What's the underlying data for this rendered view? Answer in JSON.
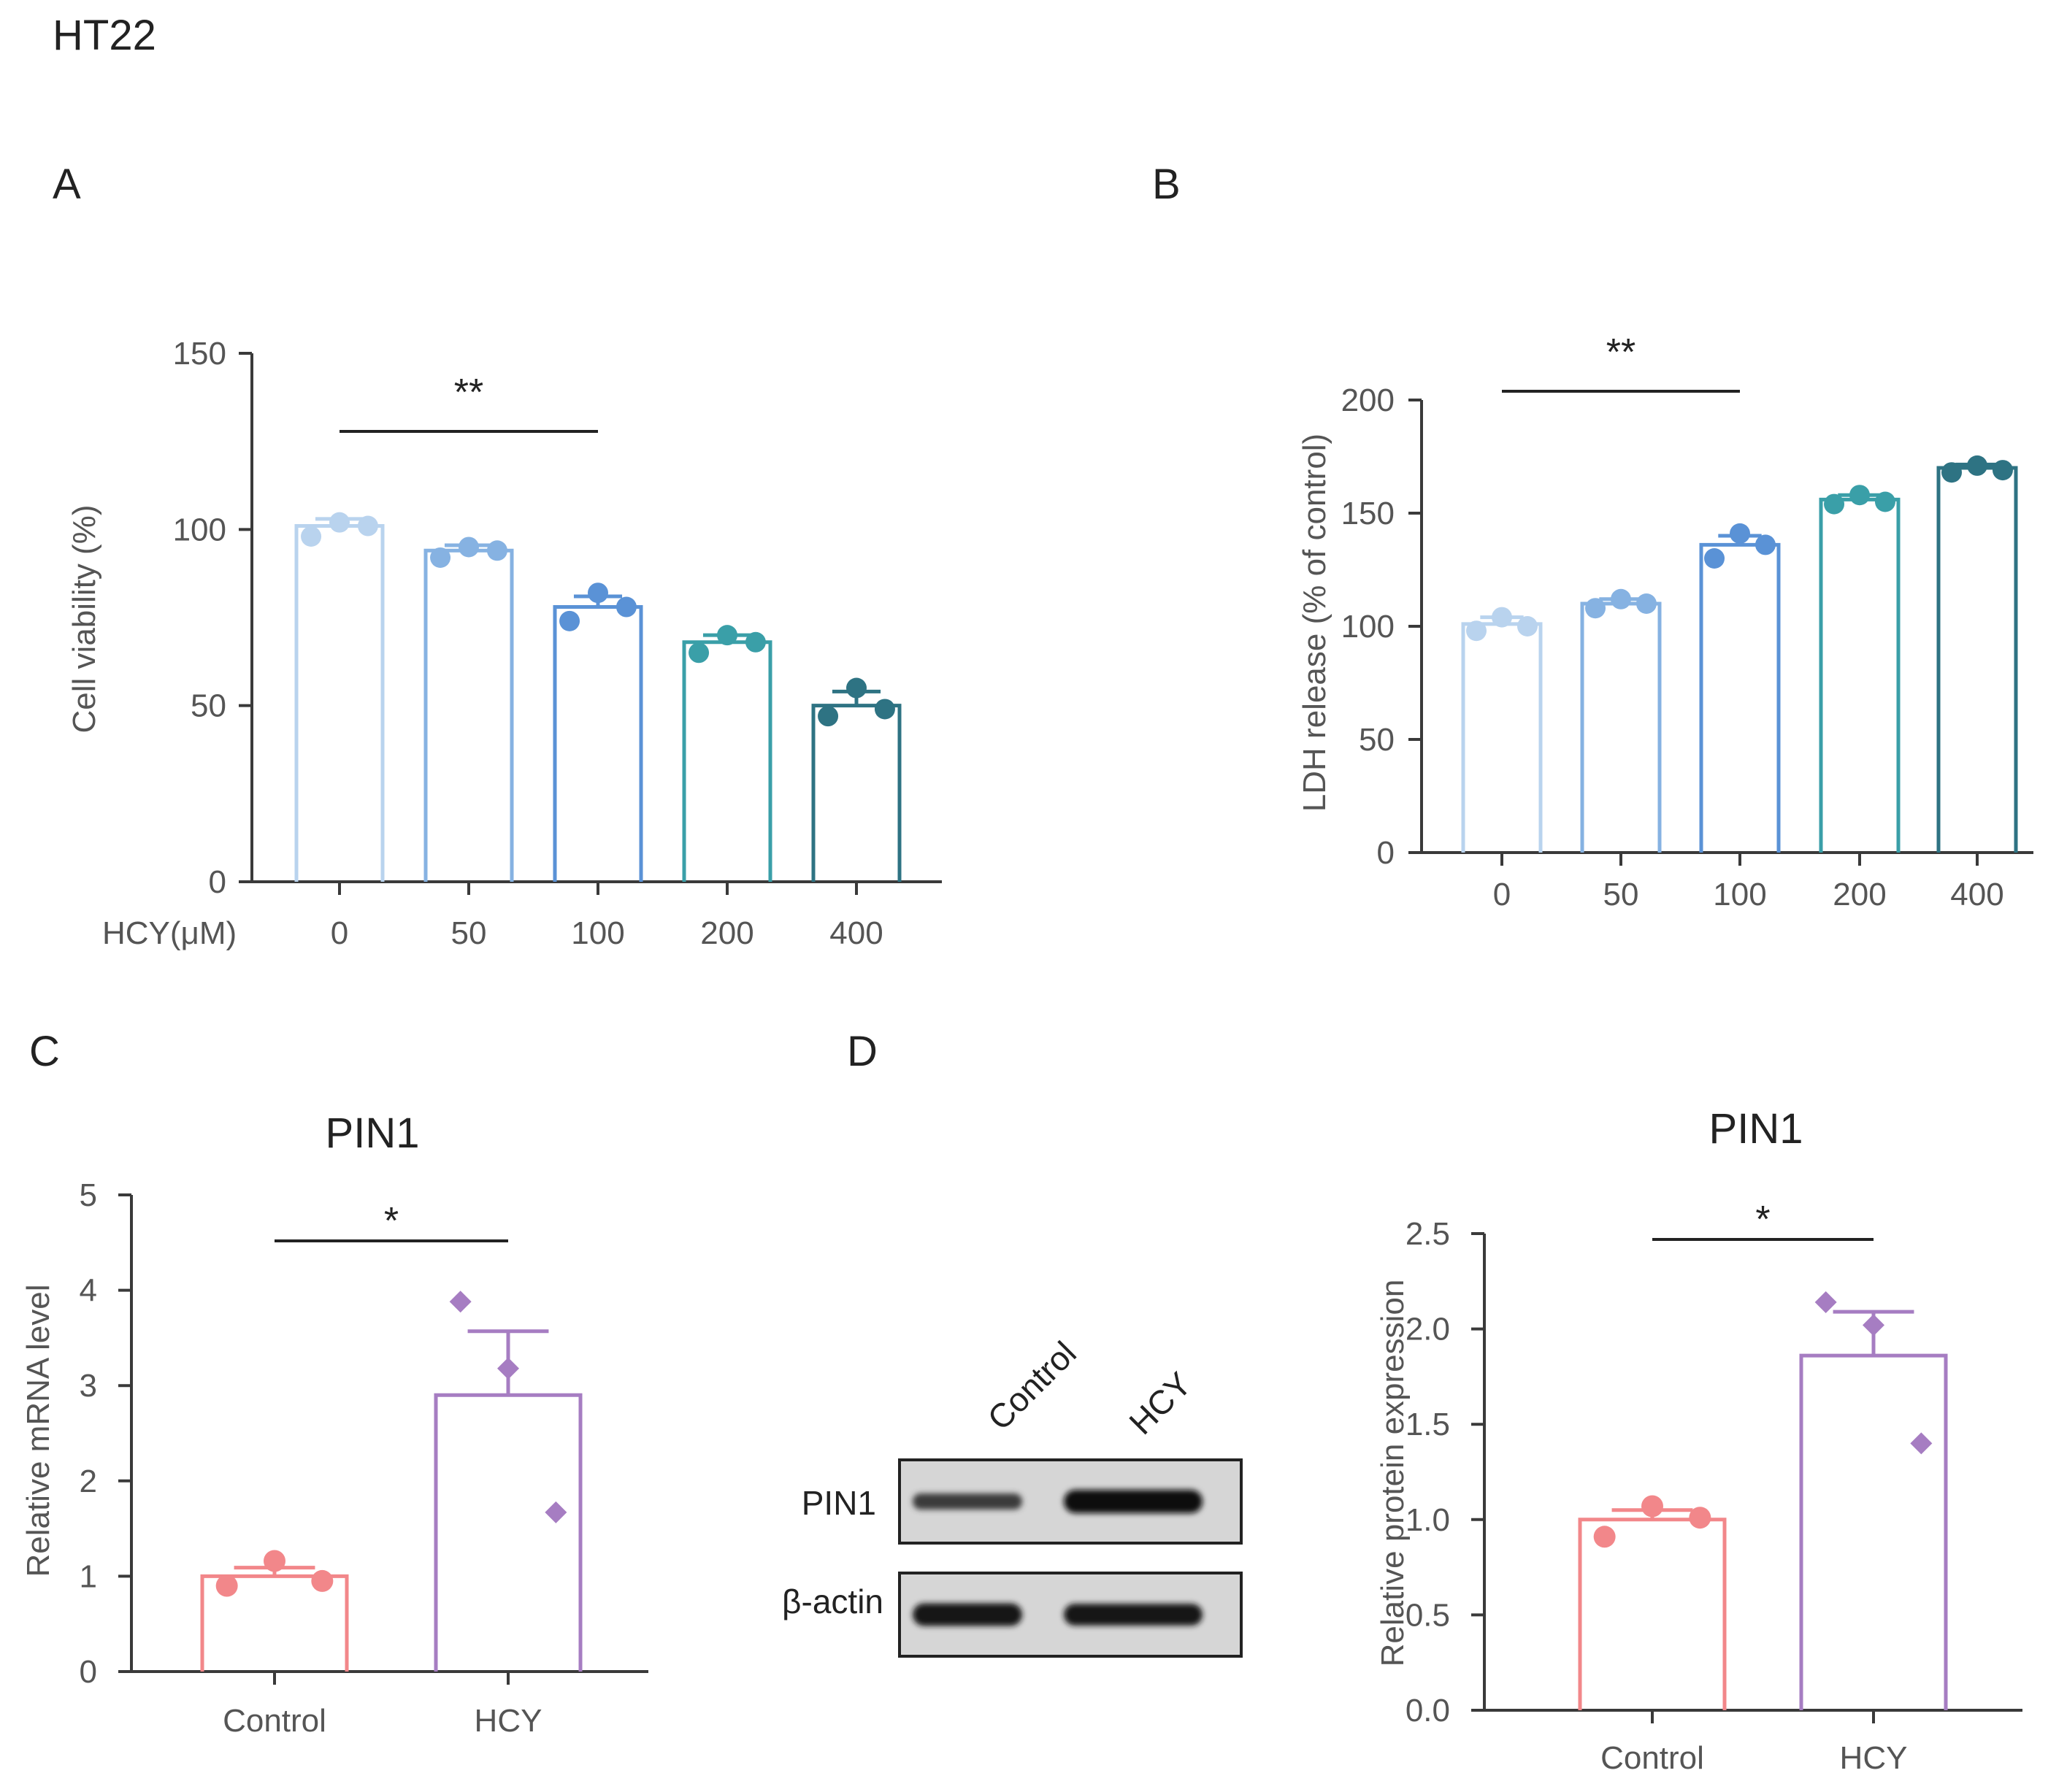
{
  "figure": {
    "cell_line": "HT22"
  },
  "chart_data": [
    {
      "panel": "A",
      "type": "bar",
      "title": "",
      "xlabel": "HCY(μM)",
      "ylabel": "Cell viability (%)",
      "ylim": [
        0,
        150
      ],
      "yticks": [
        "0",
        "50",
        "100",
        "150"
      ],
      "categories": [
        "0",
        "50",
        "100",
        "200",
        "400"
      ],
      "values": [
        101,
        94,
        78,
        68,
        50
      ],
      "errors": [
        2,
        1.5,
        3,
        2,
        4
      ],
      "points": [
        [
          98,
          102,
          101
        ],
        [
          92,
          95,
          94
        ],
        [
          74,
          82,
          78
        ],
        [
          65,
          70,
          68
        ],
        [
          47,
          55,
          49
        ]
      ],
      "colors": [
        "#b9d3ee",
        "#86b2e2",
        "#5a92d6",
        "#3a9fa8",
        "#2e7383"
      ],
      "significance": {
        "from": 0,
        "to": 2,
        "label": "**"
      }
    },
    {
      "panel": "B",
      "type": "bar",
      "title": "",
      "xlabel": "",
      "ylabel": "LDH release (% of control)",
      "ylim": [
        0,
        200
      ],
      "yticks": [
        "0",
        "50",
        "100",
        "150",
        "200"
      ],
      "categories": [
        "0",
        "50",
        "100",
        "200",
        "400"
      ],
      "values": [
        101,
        110,
        136,
        156,
        170
      ],
      "errors": [
        3,
        2,
        4,
        2,
        1.5
      ],
      "points": [
        [
          98,
          104,
          100
        ],
        [
          108,
          112,
          110
        ],
        [
          130,
          141,
          136
        ],
        [
          154,
          158,
          155
        ],
        [
          168,
          171,
          169
        ]
      ],
      "colors": [
        "#b9d3ee",
        "#86b2e2",
        "#5a92d6",
        "#3a9fa8",
        "#2e7383"
      ],
      "significance": {
        "from": 0,
        "to": 2,
        "label": "**"
      }
    },
    {
      "panel": "C",
      "type": "bar",
      "title": "PIN1",
      "xlabel": "",
      "ylabel": "Relative mRNA level",
      "ylim": [
        0,
        5
      ],
      "yticks": [
        "0",
        "1",
        "2",
        "3",
        "4",
        "5"
      ],
      "categories": [
        "Control",
        "HCY"
      ],
      "values": [
        1.0,
        2.9
      ],
      "errors": [
        0.09,
        0.67
      ],
      "points": [
        [
          0.9,
          1.16,
          0.95
        ],
        [
          3.88,
          3.18,
          1.67
        ]
      ],
      "markers": [
        "circle",
        "diamond"
      ],
      "colors": [
        "#f2878a",
        "#a67dc2"
      ],
      "significance": {
        "from": 0,
        "to": 1,
        "label": "*"
      }
    },
    {
      "panel": "D",
      "type": "bar",
      "title": "PIN1",
      "xlabel": "",
      "ylabel": "Relative protein expression",
      "ylim": [
        0,
        2.5
      ],
      "yticks": [
        "0.0",
        "0.5",
        "1.0",
        "1.5",
        "2.0",
        "2.5"
      ],
      "categories": [
        "Control",
        "HCY"
      ],
      "values": [
        1.0,
        1.86
      ],
      "errors": [
        0.05,
        0.23
      ],
      "points": [
        [
          0.91,
          1.07,
          1.01
        ],
        [
          2.14,
          2.02,
          1.4
        ]
      ],
      "markers": [
        "circle",
        "diamond"
      ],
      "colors": [
        "#f2878a",
        "#a67dc2"
      ],
      "significance": {
        "from": 0,
        "to": 1,
        "label": "*"
      }
    }
  ],
  "western_blot": {
    "lane_labels": [
      "Control",
      "HCY"
    ],
    "rows": [
      {
        "label": "PIN1",
        "band_strength": [
          0.55,
          1.0
        ]
      },
      {
        "label": "β-actin",
        "band_strength": [
          0.95,
          0.9
        ]
      }
    ]
  }
}
